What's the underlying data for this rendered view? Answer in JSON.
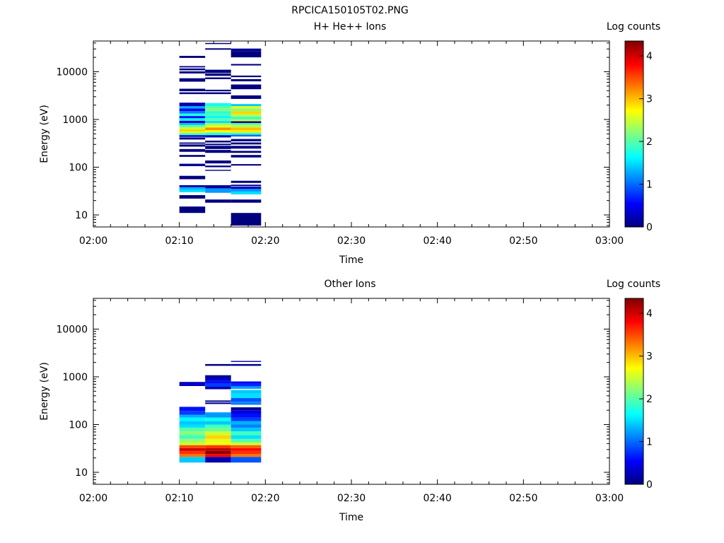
{
  "figure": {
    "title": "RPCICA150105T02.PNG"
  },
  "colorscale": {
    "label": "Log counts",
    "range": [
      0,
      4.35
    ],
    "ticks": [
      "0",
      "1",
      "2",
      "3",
      "4"
    ],
    "stops": [
      "#00007f",
      "#0000ff",
      "#007fff",
      "#00ffff",
      "#7fff7f",
      "#ffff00",
      "#ff7f00",
      "#ff0000",
      "#7f0000"
    ]
  },
  "chart_data": [
    {
      "type": "heatmap",
      "title": "H+ He++ Ions",
      "xlabel": "Time",
      "ylabel": "Energy (eV)",
      "y_scale": "log",
      "xlim": [
        "02:00",
        "03:00"
      ],
      "ylim": [
        5.6,
        44000
      ],
      "x_ticks": [
        "02:00",
        "02:10",
        "02:20",
        "02:30",
        "02:40",
        "02:50",
        "03:00"
      ],
      "y_ticks": [
        "10",
        "100",
        "1000",
        "10000"
      ],
      "time_bins": [
        {
          "start": "02:10:00",
          "end": "02:13:00",
          "rows": [
            [
              11,
              15,
              0
            ],
            [
              22,
              26,
              0
            ],
            [
              30,
              34,
              1.5
            ],
            [
              34,
              38,
              1.3
            ],
            [
              38,
              42,
              0.2
            ],
            [
              56,
              66,
              0
            ],
            [
              105,
              118,
              0.1
            ],
            [
              165,
              180,
              0
            ],
            [
              210,
              240,
              0
            ],
            [
              270,
              300,
              0
            ],
            [
              310,
              330,
              0
            ],
            [
              380,
              420,
              0
            ],
            [
              430,
              470,
              0.4
            ],
            [
              470,
              520,
              1.9
            ],
            [
              520,
              560,
              2.6
            ],
            [
              560,
              620,
              2.9
            ],
            [
              620,
              680,
              2.5
            ],
            [
              680,
              760,
              2.1
            ],
            [
              760,
              840,
              1.4
            ],
            [
              840,
              940,
              0.3
            ],
            [
              940,
              1060,
              1.6
            ],
            [
              1060,
              1180,
              0.6
            ],
            [
              1180,
              1330,
              1.8
            ],
            [
              1330,
              1500,
              1.1
            ],
            [
              1500,
              1700,
              0.5
            ],
            [
              1700,
              1900,
              1.3
            ],
            [
              1900,
              2250,
              0.2
            ],
            [
              3400,
              3700,
              0
            ],
            [
              3900,
              4400,
              0
            ],
            [
              6200,
              7300,
              0
            ],
            [
              9200,
              10200,
              0
            ],
            [
              10700,
              11700,
              0
            ],
            [
              12300,
              13100,
              0
            ],
            [
              19500,
              21500,
              0
            ]
          ]
        },
        {
          "start": "02:13:00",
          "end": "02:16:00",
          "rows": [
            [
              18,
              21,
              0
            ],
            [
              29,
              36,
              1.2
            ],
            [
              36,
              42,
              0.1
            ],
            [
              84,
              88,
              0
            ],
            [
              100,
              108,
              0
            ],
            [
              120,
              138,
              0
            ],
            [
              200,
              230,
              0
            ],
            [
              240,
              280,
              0
            ],
            [
              290,
              310,
              0
            ],
            [
              330,
              360,
              0
            ],
            [
              420,
              470,
              0.3
            ],
            [
              470,
              530,
              1.8
            ],
            [
              530,
              600,
              2.7
            ],
            [
              600,
              680,
              3.2
            ],
            [
              680,
              760,
              2.6
            ],
            [
              760,
              840,
              2.3
            ],
            [
              840,
              940,
              1.5
            ],
            [
              940,
              1060,
              2.0
            ],
            [
              1060,
              1180,
              1.6
            ],
            [
              1180,
              1330,
              1.9
            ],
            [
              1330,
              1500,
              1.8
            ],
            [
              1500,
              1700,
              2.2
            ],
            [
              1700,
              1900,
              2.0
            ],
            [
              1900,
              2200,
              1.7
            ],
            [
              3400,
              3700,
              0
            ],
            [
              3900,
              4200,
              0
            ],
            [
              7000,
              7600,
              0
            ],
            [
              8200,
              9200,
              0
            ],
            [
              9400,
              11000,
              0
            ],
            [
              29000,
              31000,
              0
            ],
            [
              38000,
              40000,
              0
            ]
          ]
        },
        {
          "start": "02:16:00",
          "end": "02:19:30",
          "rows": [
            [
              6,
              11,
              0
            ],
            [
              18,
              21,
              0
            ],
            [
              27,
              31,
              1.5
            ],
            [
              31,
              35,
              1.2
            ],
            [
              35,
              39,
              0.3
            ],
            [
              40,
              43,
              0
            ],
            [
              47,
              52,
              0
            ],
            [
              108,
              116,
              0
            ],
            [
              160,
              180,
              0
            ],
            [
              200,
              220,
              0
            ],
            [
              245,
              280,
              0
            ],
            [
              300,
              330,
              0
            ],
            [
              350,
              390,
              0
            ],
            [
              440,
              480,
              1.0
            ],
            [
              480,
              530,
              1.9
            ],
            [
              530,
              600,
              2.8
            ],
            [
              600,
              680,
              3.0
            ],
            [
              680,
              760,
              2.4
            ],
            [
              760,
              840,
              2.1
            ],
            [
              840,
              920,
              0.2
            ],
            [
              920,
              1000,
              2.5
            ],
            [
              1000,
              1150,
              1.9
            ],
            [
              1150,
              1300,
              2.4
            ],
            [
              1300,
              1500,
              2.9
            ],
            [
              1500,
              1700,
              2.2
            ],
            [
              1700,
              1900,
              2.6
            ],
            [
              1900,
              2100,
              1.4
            ],
            [
              2700,
              3200,
              0
            ],
            [
              4300,
              5400,
              0
            ],
            [
              6300,
              7000,
              0
            ],
            [
              7700,
              8300,
              0
            ],
            [
              13500,
              14500,
              0
            ],
            [
              20000,
              27000,
              0
            ],
            [
              27000,
              30500,
              0.1
            ]
          ]
        }
      ]
    },
    {
      "type": "heatmap",
      "title": "Other Ions",
      "xlabel": "Time",
      "ylabel": "Energy (eV)",
      "y_scale": "log",
      "xlim": [
        "02:00",
        "03:00"
      ],
      "ylim": [
        5.6,
        44000
      ],
      "x_ticks": [
        "02:00",
        "02:10",
        "02:20",
        "02:30",
        "02:40",
        "02:50",
        "03:00"
      ],
      "y_ticks": [
        "10",
        "100",
        "1000",
        "10000"
      ],
      "time_bins": [
        {
          "start": "02:10:00",
          "end": "02:13:00",
          "rows": [
            [
              16,
              21,
              1.4
            ],
            [
              21,
              24,
              3.3
            ],
            [
              24,
              28,
              3.6
            ],
            [
              28,
              32,
              4.0
            ],
            [
              32,
              37,
              3.5
            ],
            [
              37,
              42,
              2.5
            ],
            [
              42,
              50,
              2.3
            ],
            [
              50,
              60,
              1.9
            ],
            [
              60,
              72,
              2.2
            ],
            [
              72,
              86,
              2.0
            ],
            [
              86,
              100,
              1.5
            ],
            [
              100,
              118,
              1.4
            ],
            [
              118,
              140,
              1.6
            ],
            [
              140,
              160,
              1.3
            ],
            [
              160,
              190,
              0.8
            ],
            [
              190,
              235,
              0.6
            ],
            [
              640,
              780,
              0.3
            ]
          ]
        },
        {
          "start": "02:13:00",
          "end": "02:16:00",
          "rows": [
            [
              16,
              21,
              0.2
            ],
            [
              21,
              24,
              3.8
            ],
            [
              24,
              28,
              4.3
            ],
            [
              28,
              32,
              4.1
            ],
            [
              32,
              37,
              3.6
            ],
            [
              37,
              42,
              2.7
            ],
            [
              42,
              50,
              2.6
            ],
            [
              50,
              60,
              2.9
            ],
            [
              60,
              72,
              2.5
            ],
            [
              72,
              86,
              2.1
            ],
            [
              86,
              100,
              1.9
            ],
            [
              100,
              118,
              1.4
            ],
            [
              118,
              140,
              1.7
            ],
            [
              140,
              180,
              1.2
            ],
            [
              270,
              290,
              0.1
            ],
            [
              300,
              320,
              0
            ],
            [
              550,
              620,
              0.2
            ],
            [
              620,
              720,
              0.8
            ],
            [
              720,
              820,
              0.6
            ],
            [
              820,
              950,
              0.3
            ],
            [
              950,
              1080,
              0.1
            ],
            [
              1700,
              1850,
              0
            ]
          ]
        },
        {
          "start": "02:16:00",
          "end": "02:19:30",
          "rows": [
            [
              16,
              21,
              0.9
            ],
            [
              21,
              24,
              3.3
            ],
            [
              24,
              28,
              3.6
            ],
            [
              28,
              32,
              3.8
            ],
            [
              32,
              37,
              3.4
            ],
            [
              37,
              42,
              2.5
            ],
            [
              42,
              50,
              2.0
            ],
            [
              50,
              60,
              1.5
            ],
            [
              60,
              72,
              1.9
            ],
            [
              72,
              86,
              1.4
            ],
            [
              86,
              100,
              1.1
            ],
            [
              100,
              118,
              1.3
            ],
            [
              118,
              140,
              0.8
            ],
            [
              140,
              170,
              0.6
            ],
            [
              170,
              200,
              0.4
            ],
            [
              200,
              230,
              0.1
            ],
            [
              260,
              300,
              1.1
            ],
            [
              300,
              360,
              0.9
            ],
            [
              360,
              450,
              1.5
            ],
            [
              450,
              530,
              1.4
            ],
            [
              560,
              640,
              1.2
            ],
            [
              640,
              720,
              0.7
            ],
            [
              720,
              800,
              0.5
            ],
            [
              1700,
              1850,
              0.1
            ],
            [
              2050,
              2150,
              0.2
            ]
          ]
        }
      ]
    }
  ]
}
